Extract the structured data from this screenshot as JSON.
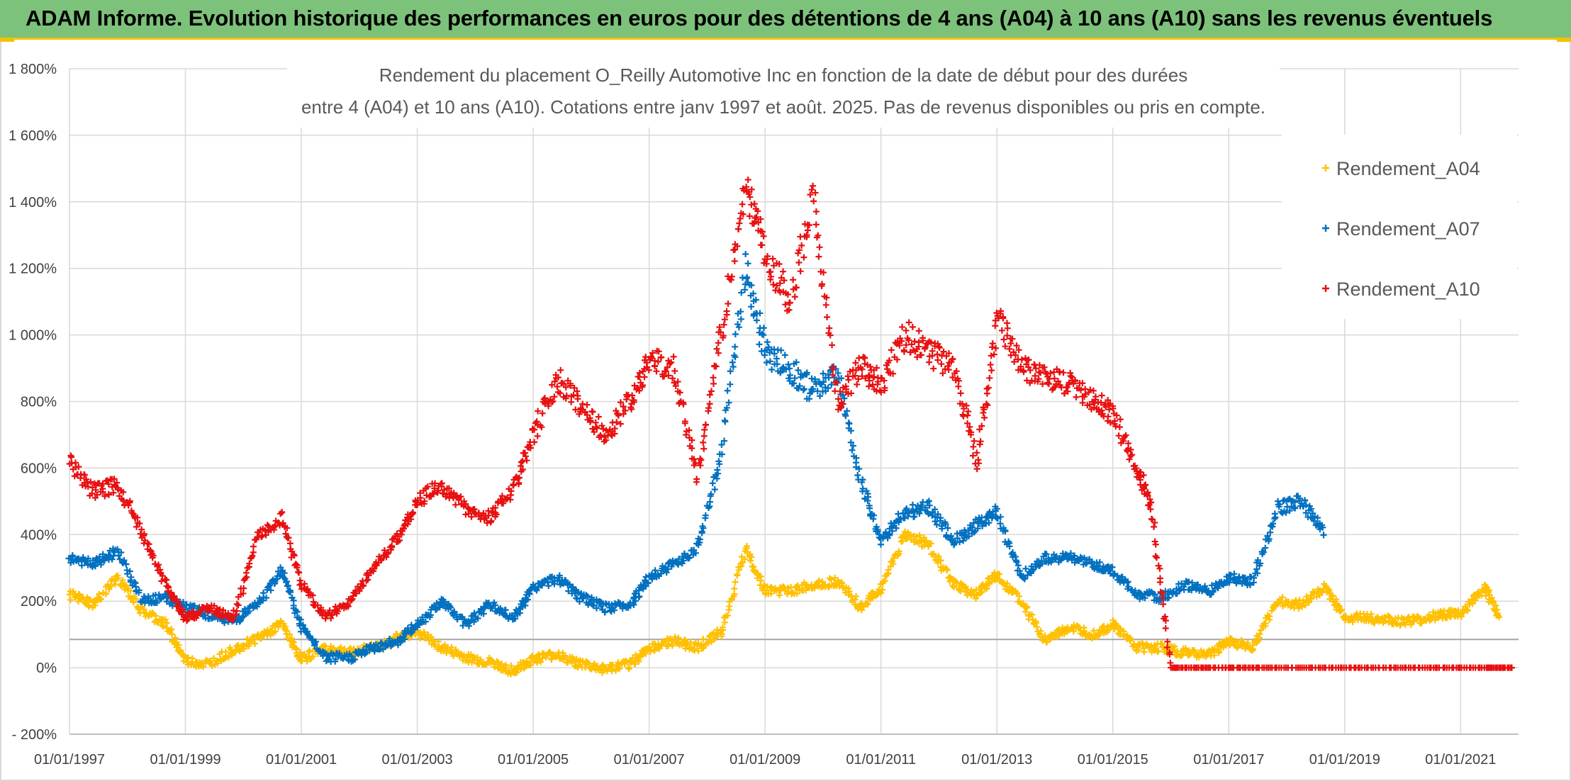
{
  "banner": {
    "title": "ADAM Informe. Evolution historique des performances en euros pour des détentions de 4 ans (A04) à 10 ans (A10) sans les revenus éventuels"
  },
  "colors": {
    "A04": "#ffc000",
    "A07": "#0070c0",
    "A10": "#e81010",
    "banner": "#7dc27a",
    "grid": "#d9d9d9"
  },
  "chart_data": {
    "type": "scatter",
    "title_line1": "Rendement du placement O_Reilly Automotive Inc en fonction de la date de début pour des durées",
    "title_line2": "entre 4 (A04) et 10 ans (A10). Cotations entre janv 1997 et août. 2025. Pas de revenus disponibles ou pris en compte.",
    "xlabel": "",
    "ylabel": "",
    "ylim": [
      -200,
      1800
    ],
    "xlim": [
      "1997-01-01",
      "2021-12-31"
    ],
    "grid": true,
    "legend_position": "top-right",
    "reference_line_value": 85,
    "y_ticks": [
      "- 200%",
      "0%",
      "200%",
      "400%",
      "600%",
      "800%",
      "1 000%",
      "1 200%",
      "1 400%",
      "1 600%",
      "1 800%"
    ],
    "x_ticks": [
      "01/01/1997",
      "01/01/1999",
      "01/01/2001",
      "01/01/2003",
      "01/01/2005",
      "01/01/2007",
      "01/01/2009",
      "01/01/2011",
      "01/01/2013",
      "01/01/2015",
      "01/01/2017",
      "01/01/2019",
      "01/01/2021"
    ],
    "series": [
      {
        "key": "A04",
        "name": "Rendement_A04",
        "x": [
          "1997-01",
          "1997-06",
          "1997-11",
          "1998-04",
          "1998-09",
          "1999-01",
          "1999-06",
          "1999-11",
          "2000-04",
          "2000-09",
          "2001-01",
          "2001-06",
          "2001-11",
          "2002-04",
          "2002-09",
          "2003-01",
          "2003-06",
          "2003-11",
          "2004-04",
          "2004-09",
          "2005-01",
          "2005-06",
          "2005-11",
          "2006-04",
          "2006-09",
          "2007-01",
          "2007-06",
          "2007-11",
          "2008-04",
          "2008-09",
          "2009-01",
          "2009-06",
          "2009-11",
          "2010-04",
          "2010-09",
          "2011-01",
          "2011-06",
          "2011-11",
          "2012-04",
          "2012-09",
          "2013-01",
          "2013-06",
          "2013-11",
          "2014-04",
          "2014-09",
          "2015-01",
          "2015-06",
          "2015-11",
          "2016-04",
          "2016-09",
          "2017-01",
          "2017-06",
          "2017-11",
          "2018-04",
          "2018-09",
          "2019-01",
          "2019-06",
          "2019-11",
          "2020-04",
          "2020-09",
          "2021-01",
          "2021-06",
          "2021-09"
        ],
        "values": [
          220,
          190,
          270,
          170,
          130,
          20,
          10,
          55,
          90,
          130,
          25,
          60,
          45,
          60,
          90,
          110,
          60,
          30,
          15,
          -10,
          25,
          40,
          10,
          -5,
          10,
          60,
          80,
          60,
          110,
          360,
          230,
          230,
          250,
          260,
          180,
          240,
          400,
          370,
          250,
          220,
          280,
          200,
          80,
          120,
          100,
          130,
          60,
          60,
          45,
          40,
          80,
          60,
          200,
          190,
          240,
          150,
          150,
          140,
          140,
          160,
          160,
          240,
          150
        ]
      },
      {
        "key": "A07",
        "name": "Rendement_A07",
        "x": [
          "1997-01",
          "1997-06",
          "1997-11",
          "1998-04",
          "1998-09",
          "1999-01",
          "1999-06",
          "1999-11",
          "2000-04",
          "2000-09",
          "2001-01",
          "2001-06",
          "2001-11",
          "2002-04",
          "2002-09",
          "2003-01",
          "2003-06",
          "2003-11",
          "2004-04",
          "2004-09",
          "2005-01",
          "2005-06",
          "2005-11",
          "2006-04",
          "2006-09",
          "2007-01",
          "2007-06",
          "2007-11",
          "2008-04",
          "2008-09",
          "2009-01",
          "2009-06",
          "2009-11",
          "2010-04",
          "2010-09",
          "2011-01",
          "2011-06",
          "2011-11",
          "2012-04",
          "2012-09",
          "2013-01",
          "2013-06",
          "2013-11",
          "2014-04",
          "2014-09",
          "2015-01",
          "2015-06",
          "2015-11",
          "2016-04",
          "2016-09",
          "2017-01",
          "2017-06",
          "2017-11",
          "2018-04",
          "2018-09"
        ],
        "values": [
          330,
          310,
          350,
          200,
          210,
          180,
          160,
          140,
          190,
          300,
          120,
          30,
          30,
          60,
          80,
          130,
          200,
          130,
          190,
          150,
          240,
          270,
          210,
          180,
          190,
          270,
          310,
          360,
          650,
          1200,
          950,
          900,
          830,
          880,
          550,
          380,
          470,
          480,
          380,
          430,
          470,
          270,
          330,
          330,
          310,
          290,
          220,
          210,
          250,
          230,
          270,
          260,
          480,
          500,
          400
        ]
      },
      {
        "key": "A10",
        "name": "Rendement_A10",
        "x": [
          "1997-01",
          "1997-06",
          "1997-11",
          "1998-04",
          "1998-09",
          "1999-01",
          "1999-06",
          "1999-11",
          "2000-04",
          "2000-09",
          "2001-01",
          "2001-06",
          "2001-11",
          "2002-04",
          "2002-09",
          "2003-01",
          "2003-06",
          "2003-11",
          "2004-04",
          "2004-09",
          "2005-01",
          "2005-06",
          "2005-11",
          "2006-04",
          "2006-09",
          "2007-01",
          "2007-06",
          "2007-11",
          "2008-04",
          "2008-09",
          "2009-01",
          "2009-06",
          "2009-11",
          "2010-04",
          "2010-09",
          "2011-01",
          "2011-06",
          "2011-11",
          "2012-04",
          "2012-09",
          "2013-01",
          "2013-06",
          "2013-11",
          "2014-04",
          "2014-09",
          "2015-01",
          "2015-06",
          "2015-09",
          "2016-01",
          "2016-09",
          "2017-06",
          "2018-06",
          "2019-06",
          "2020-06",
          "2021-06",
          "2021-12"
        ],
        "values": [
          620,
          530,
          550,
          400,
          250,
          150,
          180,
          150,
          400,
          450,
          250,
          150,
          200,
          300,
          390,
          500,
          550,
          480,
          450,
          540,
          700,
          870,
          780,
          700,
          800,
          920,
          900,
          580,
          1000,
          1450,
          1250,
          1100,
          1400,
          800,
          900,
          850,
          1000,
          950,
          900,
          620,
          1050,
          900,
          880,
          850,
          800,
          760,
          600,
          480,
          0,
          0,
          0,
          0,
          0,
          0,
          0,
          0
        ]
      }
    ]
  }
}
